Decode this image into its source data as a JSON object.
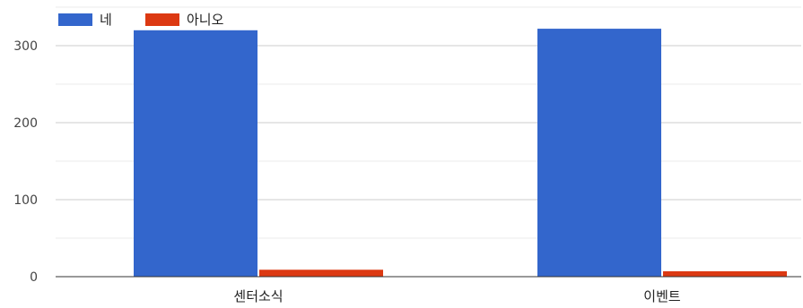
{
  "chart_data": {
    "type": "bar",
    "categories": [
      "센터소식",
      "이벤트"
    ],
    "series": [
      {
        "name": "네",
        "color": "#3366cc",
        "values": [
          320,
          322
        ]
      },
      {
        "name": "아니오",
        "color": "#dc3912",
        "values": [
          9,
          7
        ]
      }
    ],
    "ylim": [
      0,
      350
    ],
    "yticks": [
      "0",
      "100",
      "200",
      "300"
    ],
    "grid": true,
    "legend_position": "top-left"
  }
}
